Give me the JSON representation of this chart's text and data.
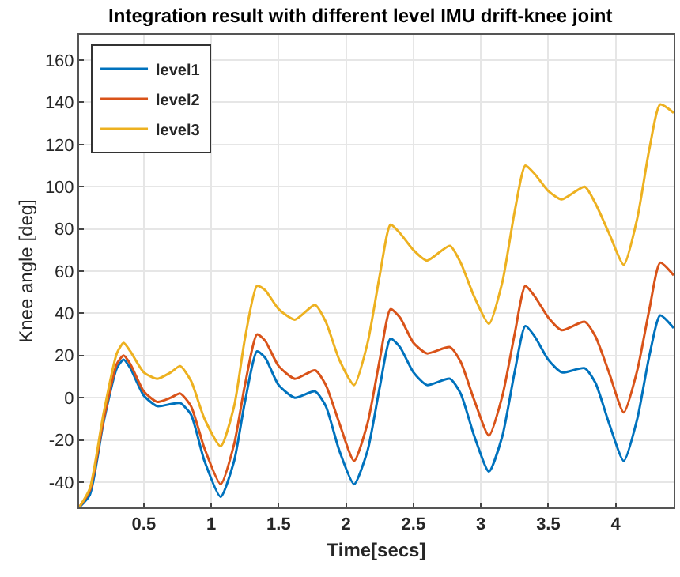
{
  "chart_data": {
    "type": "line",
    "title": "Integration result with different level IMU drift-knee joint",
    "xlabel": "Time[secs]",
    "ylabel": "Knee angle [deg]",
    "x": [
      0.02,
      0.1,
      0.2,
      0.3,
      0.35,
      0.4,
      0.5,
      0.6,
      0.7,
      0.77,
      0.85,
      0.95,
      1.07,
      1.17,
      1.25,
      1.34,
      1.4,
      1.5,
      1.62,
      1.77,
      1.85,
      1.95,
      2.06,
      2.16,
      2.25,
      2.33,
      2.4,
      2.5,
      2.6,
      2.77,
      2.85,
      2.95,
      3.06,
      3.16,
      3.25,
      3.33,
      3.4,
      3.5,
      3.6,
      3.77,
      3.85,
      3.95,
      4.06,
      4.16,
      4.25,
      4.33,
      4.43
    ],
    "series": [
      {
        "name": "level1",
        "color": "#0072bd",
        "values": [
          -52,
          -46,
          -12,
          14,
          18,
          14,
          1,
          -4,
          -3,
          -2.5,
          -8,
          -30,
          -47,
          -30,
          -2,
          22,
          19,
          6,
          0,
          3,
          -4,
          -25,
          -41,
          -25,
          5,
          28,
          24,
          12,
          6,
          9,
          2,
          -18,
          -35,
          -18,
          12,
          34,
          29,
          18,
          12,
          14,
          7,
          -12,
          -30,
          -10,
          20,
          39,
          33
        ]
      },
      {
        "name": "level2",
        "color": "#d95319",
        "values": [
          -52,
          -44,
          -11,
          16,
          20,
          16,
          3,
          -2,
          0,
          2,
          -4,
          -24,
          -41,
          -22,
          6,
          30,
          27,
          15,
          9,
          13,
          6,
          -12,
          -30,
          -12,
          18,
          42,
          38,
          26,
          21,
          24,
          17,
          -1,
          -18,
          1,
          30,
          53,
          48,
          38,
          32,
          36,
          29,
          12,
          -7,
          13,
          42,
          64,
          58
        ]
      },
      {
        "name": "level3",
        "color": "#edb120",
        "values": [
          -52,
          -43,
          -8,
          21,
          26,
          22,
          12,
          9,
          12,
          15,
          8,
          -10,
          -23,
          -4,
          28,
          53,
          51,
          42,
          37,
          44,
          36,
          18,
          6,
          26,
          58,
          82,
          78,
          70,
          65,
          72,
          64,
          48,
          35,
          55,
          88,
          110,
          106,
          98,
          94,
          100,
          92,
          78,
          63,
          85,
          118,
          139,
          135
        ]
      }
    ],
    "xlim": [
      0.02,
      4.43
    ],
    "ylim": [
      -52,
      172
    ],
    "xticks": [
      0.5,
      1,
      1.5,
      2,
      2.5,
      3,
      3.5,
      4
    ],
    "yticks": [
      -40,
      -20,
      0,
      20,
      40,
      60,
      80,
      100,
      120,
      140,
      160
    ],
    "grid": true,
    "legend": "top left",
    "marker": "none",
    "line_style": "solid"
  }
}
